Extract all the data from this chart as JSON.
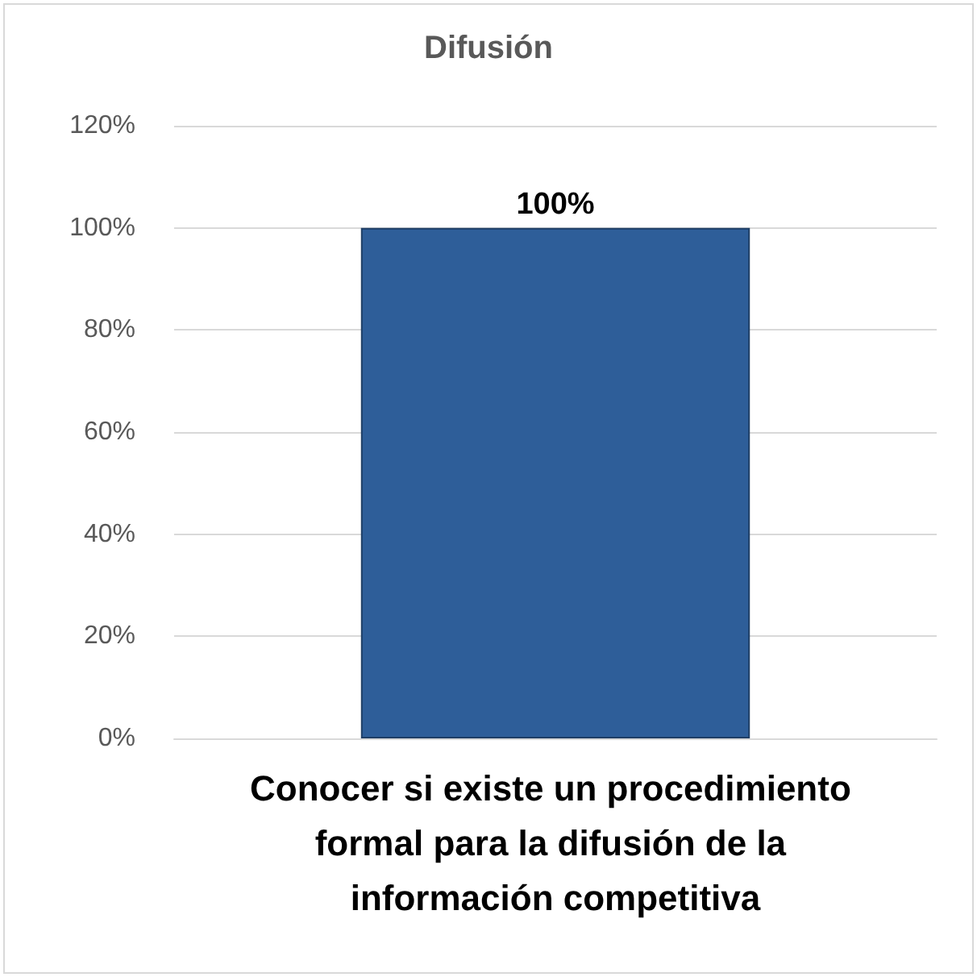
{
  "chart_data": {
    "type": "bar",
    "title": "Difusión",
    "categories": [
      "Conocer si existe un procedimiento formal para la difusión de la información competitiva"
    ],
    "values": [
      100
    ],
    "color": "#2e5e99",
    "value_labels": [
      "100%"
    ],
    "ylim": [
      0,
      120
    ],
    "yticks": [
      {
        "value": 0,
        "label": "0%"
      },
      {
        "value": 20,
        "label": "20%"
      },
      {
        "value": 40,
        "label": "40%"
      },
      {
        "value": 60,
        "label": "60%"
      },
      {
        "value": 80,
        "label": "80%"
      },
      {
        "value": 100,
        "label": "100%"
      },
      {
        "value": 120,
        "label": "120%"
      }
    ],
    "grid": "y"
  }
}
